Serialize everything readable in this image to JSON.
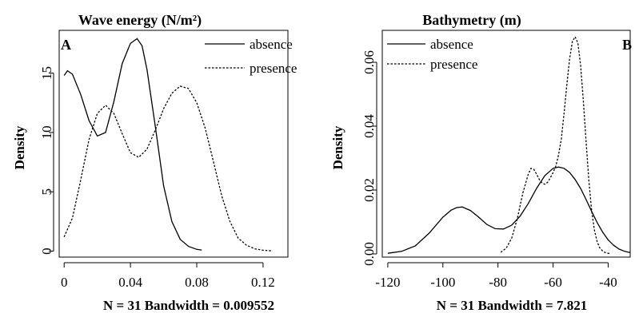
{
  "chart_data": [
    {
      "type": "line",
      "panel_label": "A",
      "title": "Wave energy (N/m²)",
      "xlabel": "N = 31 Bandwidth = 0.009552",
      "ylabel": "Density",
      "xticks": [
        "0",
        "0.04",
        "0.08",
        "0.12"
      ],
      "yticks": [
        "0",
        "5",
        "10",
        "15"
      ],
      "xlim": [
        -0.003,
        0.135
      ],
      "ylim": [
        -0.5,
        18.6
      ],
      "legend_position": "top-right",
      "series": [
        {
          "name": "absence",
          "style": "solid",
          "x": [
            0.0,
            0.002,
            0.005,
            0.01,
            0.015,
            0.02,
            0.025,
            0.03,
            0.035,
            0.04,
            0.044,
            0.047,
            0.05,
            0.055,
            0.06,
            0.065,
            0.07,
            0.075,
            0.08,
            0.083
          ],
          "y": [
            14.8,
            15.2,
            14.9,
            13.2,
            11.0,
            9.7,
            10.0,
            12.6,
            15.8,
            17.5,
            17.9,
            17.3,
            15.3,
            10.5,
            5.5,
            2.5,
            1.0,
            0.4,
            0.15,
            0.1
          ]
        },
        {
          "name": "presence",
          "style": "dotted",
          "x": [
            0.0,
            0.005,
            0.01,
            0.015,
            0.02,
            0.025,
            0.03,
            0.035,
            0.04,
            0.045,
            0.05,
            0.055,
            0.06,
            0.065,
            0.07,
            0.075,
            0.08,
            0.085,
            0.09,
            0.095,
            0.1,
            0.105,
            0.11,
            0.115,
            0.12,
            0.125
          ],
          "y": [
            1.2,
            2.8,
            6.0,
            9.4,
            11.6,
            12.3,
            11.6,
            9.9,
            8.3,
            7.9,
            8.6,
            10.2,
            12.0,
            13.3,
            13.9,
            13.7,
            12.5,
            10.4,
            7.6,
            4.7,
            2.5,
            1.1,
            0.5,
            0.2,
            0.08,
            0.03
          ]
        }
      ]
    },
    {
      "type": "line",
      "panel_label": "B",
      "title": "Bathymetry (m)",
      "xlabel": "N = 31 Bandwidth = 7.821",
      "ylabel": "Density",
      "xticks": [
        "-120",
        "-100",
        "-80",
        "-60",
        "-40"
      ],
      "yticks": [
        "0.00",
        "0.02",
        "0.04",
        "0.06"
      ],
      "xlim": [
        -122,
        -32
      ],
      "ylim": [
        -0.001,
        0.07
      ],
      "legend_position": "top-left",
      "series": [
        {
          "name": "absence",
          "style": "solid",
          "x": [
            -120,
            -115,
            -110,
            -105,
            -100,
            -97,
            -95,
            -93,
            -90,
            -87,
            -84,
            -81,
            -78,
            -75,
            -72,
            -69,
            -66,
            -63,
            -60,
            -58,
            -56,
            -54,
            -52,
            -50,
            -48,
            -46,
            -44,
            -42,
            -40,
            -38,
            -36,
            -34,
            -32
          ],
          "y": [
            0.0002,
            0.0008,
            0.0025,
            0.0065,
            0.0115,
            0.0137,
            0.0145,
            0.0147,
            0.0136,
            0.0115,
            0.0092,
            0.0079,
            0.0078,
            0.009,
            0.0118,
            0.0158,
            0.0205,
            0.0245,
            0.0268,
            0.0272,
            0.0268,
            0.0255,
            0.0233,
            0.0205,
            0.017,
            0.0133,
            0.0098,
            0.0068,
            0.0044,
            0.0027,
            0.0015,
            0.0008,
            0.0004
          ]
        },
        {
          "name": "presence",
          "style": "dotted",
          "x": [
            -79,
            -77,
            -75,
            -73,
            -71,
            -69,
            -68,
            -67,
            -66,
            -65,
            -64,
            -63,
            -62,
            -61,
            -60,
            -59,
            -58,
            -57,
            -56,
            -55,
            -54,
            -53,
            -52,
            -51,
            -50,
            -49,
            -48,
            -47,
            -46,
            -45,
            -44,
            -43,
            -42,
            -41,
            -40,
            -39
          ],
          "y": [
            0.0005,
            0.0018,
            0.005,
            0.011,
            0.019,
            0.025,
            0.0268,
            0.0265,
            0.025,
            0.0233,
            0.0222,
            0.0218,
            0.0224,
            0.0238,
            0.0255,
            0.0275,
            0.031,
            0.036,
            0.044,
            0.053,
            0.061,
            0.0665,
            0.068,
            0.066,
            0.059,
            0.048,
            0.035,
            0.023,
            0.0135,
            0.0075,
            0.0038,
            0.0018,
            0.0009,
            0.0004,
            0.0002,
            0.0001
          ]
        }
      ]
    }
  ]
}
